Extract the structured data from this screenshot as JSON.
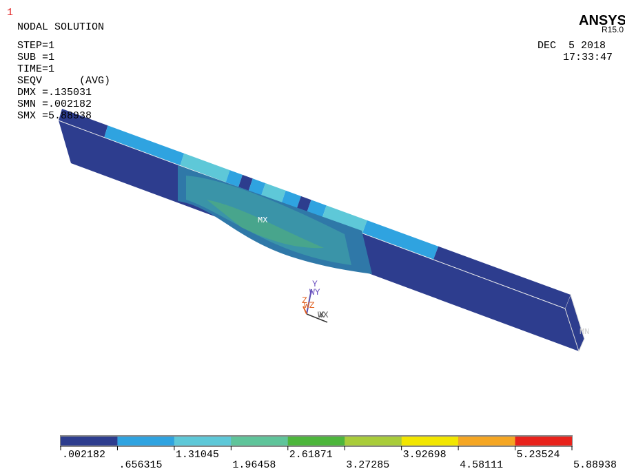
{
  "header": {
    "window_number": "1",
    "title": "NODAL SOLUTION",
    "brand": "ANSYS",
    "version": "R15.0",
    "date": "DEC  5 2018",
    "time": "17:33:47"
  },
  "info": [
    "STEP=1",
    "SUB =1",
    "TIME=1",
    "SEQV      (AVG)",
    "DMX =.135031",
    "SMN =.002182",
    "SMX =5.88938"
  ],
  "labels": {
    "max": "MX",
    "min": "MN"
  },
  "triad": {
    "y": "Y",
    "wy": "WY",
    "z": "Z",
    "wz": "WZ",
    "x": "X",
    "wx": "WX"
  },
  "legend": {
    "colors": [
      "#2d3d8e",
      "#2fa3e0",
      "#5ec8d8",
      "#5fc49a",
      "#4db63c",
      "#a8cc3a",
      "#f2e600",
      "#f5a623",
      "#e8221b"
    ],
    "labels": [
      ".002182",
      ".656315",
      "1.31045",
      "1.96458",
      "2.61871",
      "3.27285",
      "3.92698",
      "4.58111",
      "5.23524",
      "5.88938"
    ]
  }
}
